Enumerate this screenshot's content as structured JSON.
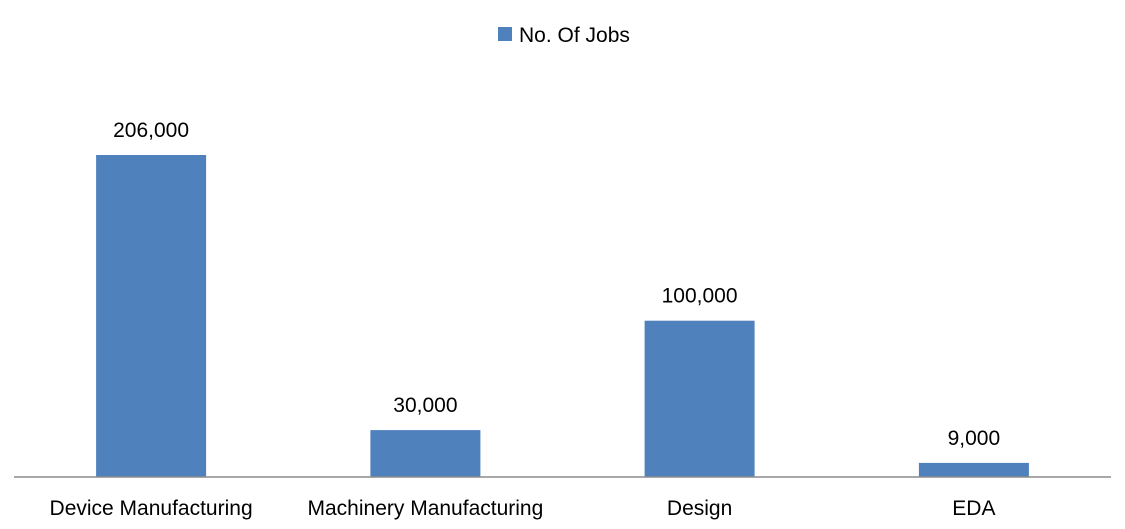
{
  "chart_data": {
    "type": "bar",
    "categories": [
      "Device Manufacturing",
      "Machinery Manufacturing",
      "Design",
      "EDA"
    ],
    "series": [
      {
        "name": "No. Of Jobs",
        "values": [
          206000,
          30000,
          100000,
          9000
        ],
        "data_labels": [
          "206,000",
          "30,000",
          "100,000",
          "9,000"
        ],
        "color": "#4F81BD"
      }
    ],
    "title": "",
    "xlabel": "",
    "ylabel": "",
    "ylim": [
      0,
      206000
    ],
    "grid": false,
    "legend_position": "top-center",
    "axis_color": "#8C8C8C"
  }
}
